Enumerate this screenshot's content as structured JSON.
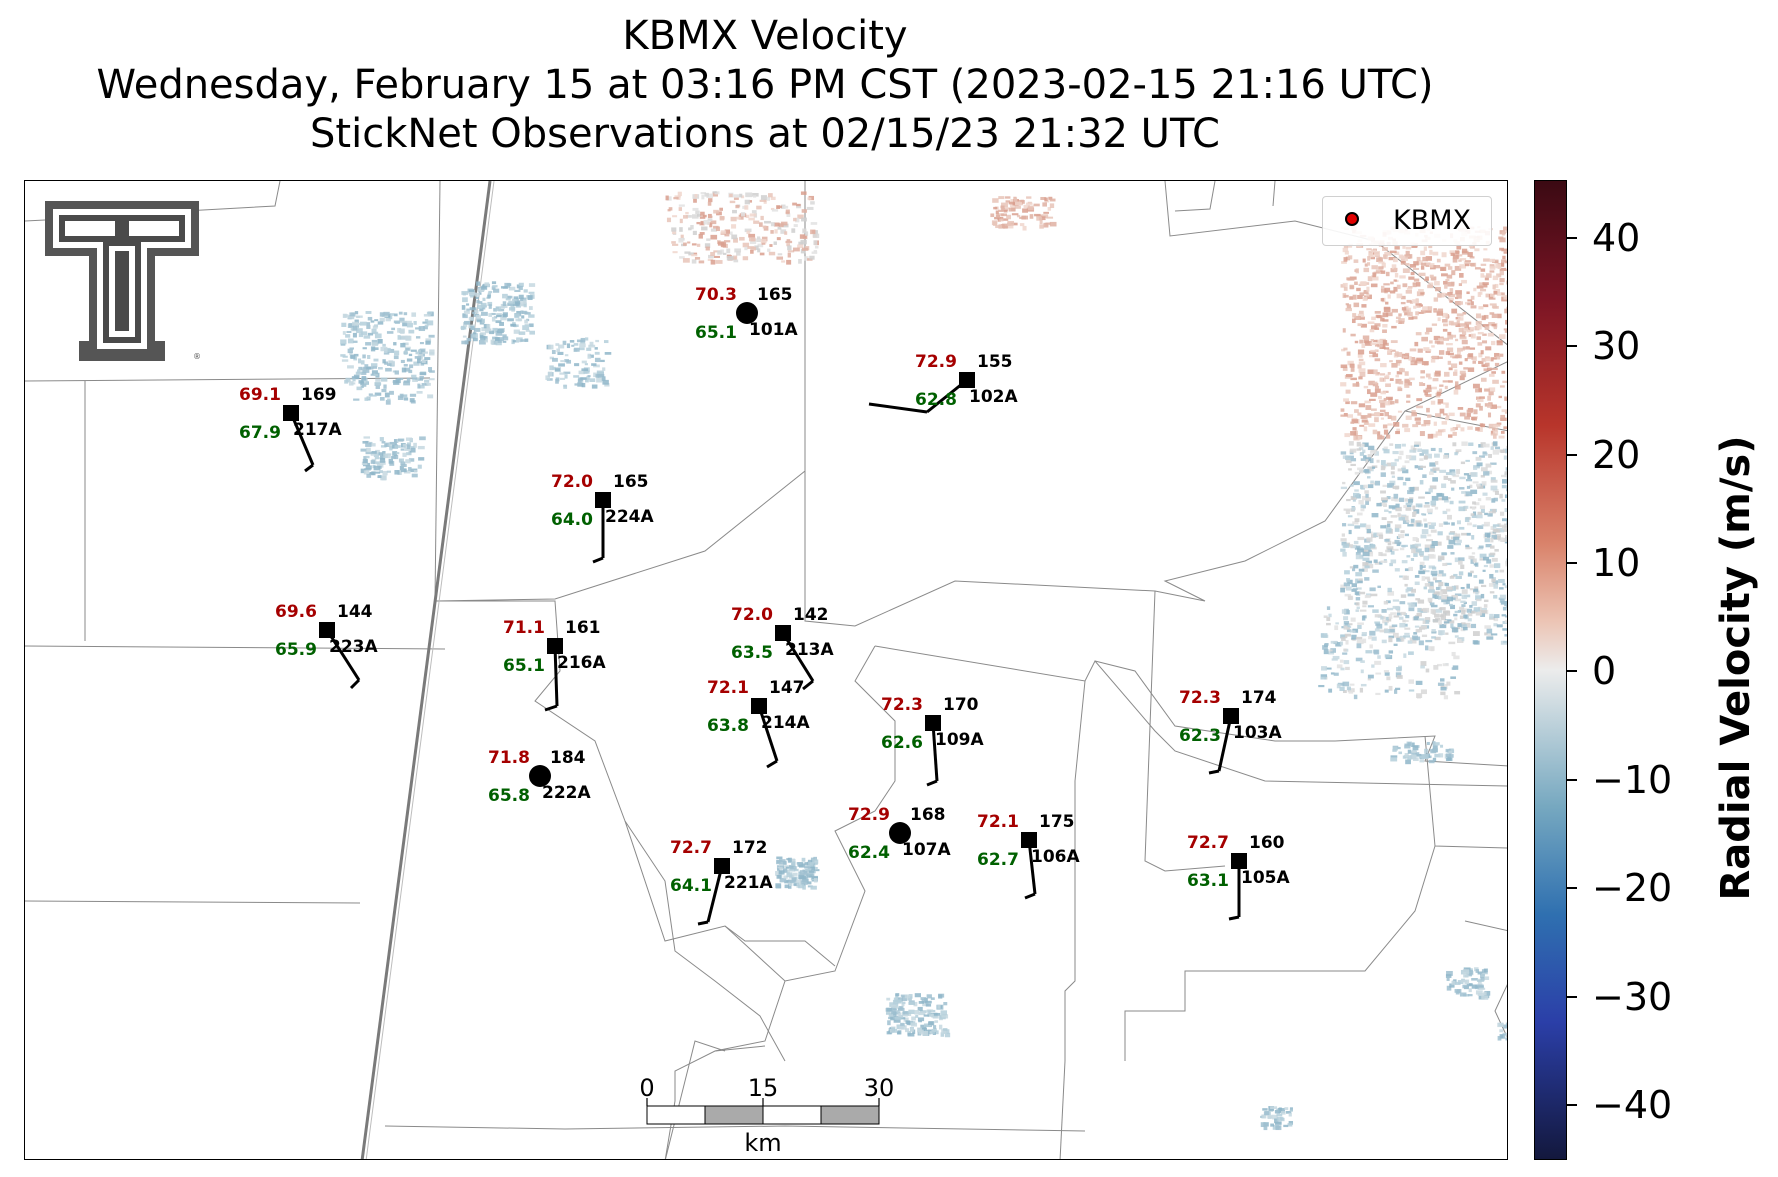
{
  "title": {
    "line1": "KBMX Velocity",
    "line2": "Wednesday, February 15 at 03:16 PM CST (2023-02-15 21:16 UTC)",
    "line3": "StickNet Observations at 02/15/23 21:32 UTC"
  },
  "legend": {
    "label": "KBMX"
  },
  "colorbar": {
    "title": "Radial Velocity (m/s)",
    "ticks": [
      "40",
      "30",
      "20",
      "10",
      "0",
      "−10",
      "−20",
      "−30",
      "−40"
    ],
    "range": [
      -45,
      45
    ]
  },
  "scalebar": {
    "unit": "km",
    "labels": [
      "0",
      "15",
      "30"
    ]
  },
  "logo": {
    "name": "texas-tech-double-t-logo"
  },
  "colors": {
    "temperature": "#a50000",
    "dewpoint": "#006000",
    "station": "#000000"
  },
  "stations": [
    {
      "id": "101A",
      "temp": "70.3",
      "dew": "65.1",
      "dir": "165",
      "marker": "circle"
    },
    {
      "id": "102A",
      "temp": "72.9",
      "dew": "62.8",
      "dir": "155",
      "marker": "square"
    },
    {
      "id": "217A",
      "temp": "69.1",
      "dew": "67.9",
      "dir": "169",
      "marker": "square"
    },
    {
      "id": "224A",
      "temp": "72.0",
      "dew": "64.0",
      "dir": "165",
      "marker": "square"
    },
    {
      "id": "223A",
      "temp": "69.6",
      "dew": "65.9",
      "dir": "144",
      "marker": "square"
    },
    {
      "id": "216A",
      "temp": "71.1",
      "dew": "65.1",
      "dir": "161",
      "marker": "square"
    },
    {
      "id": "213A",
      "temp": "72.0",
      "dew": "63.5",
      "dir": "142",
      "marker": "square"
    },
    {
      "id": "214A",
      "temp": "72.1",
      "dew": "63.8",
      "dir": "147",
      "marker": "square"
    },
    {
      "id": "109A",
      "temp": "72.3",
      "dew": "62.6",
      "dir": "170",
      "marker": "square"
    },
    {
      "id": "103A",
      "temp": "72.3",
      "dew": "62.3",
      "dir": "174",
      "marker": "square"
    },
    {
      "id": "222A",
      "temp": "71.8",
      "dew": "65.8",
      "dir": "184",
      "marker": "circle"
    },
    {
      "id": "107A",
      "temp": "72.9",
      "dew": "62.4",
      "dir": "168",
      "marker": "circle"
    },
    {
      "id": "106A",
      "temp": "72.1",
      "dew": "62.7",
      "dir": "175",
      "marker": "square"
    },
    {
      "id": "221A",
      "temp": "72.7",
      "dew": "64.1",
      "dir": "172",
      "marker": "square"
    },
    {
      "id": "105A",
      "temp": "72.7",
      "dew": "63.1",
      "dir": "160",
      "marker": "square"
    }
  ]
}
